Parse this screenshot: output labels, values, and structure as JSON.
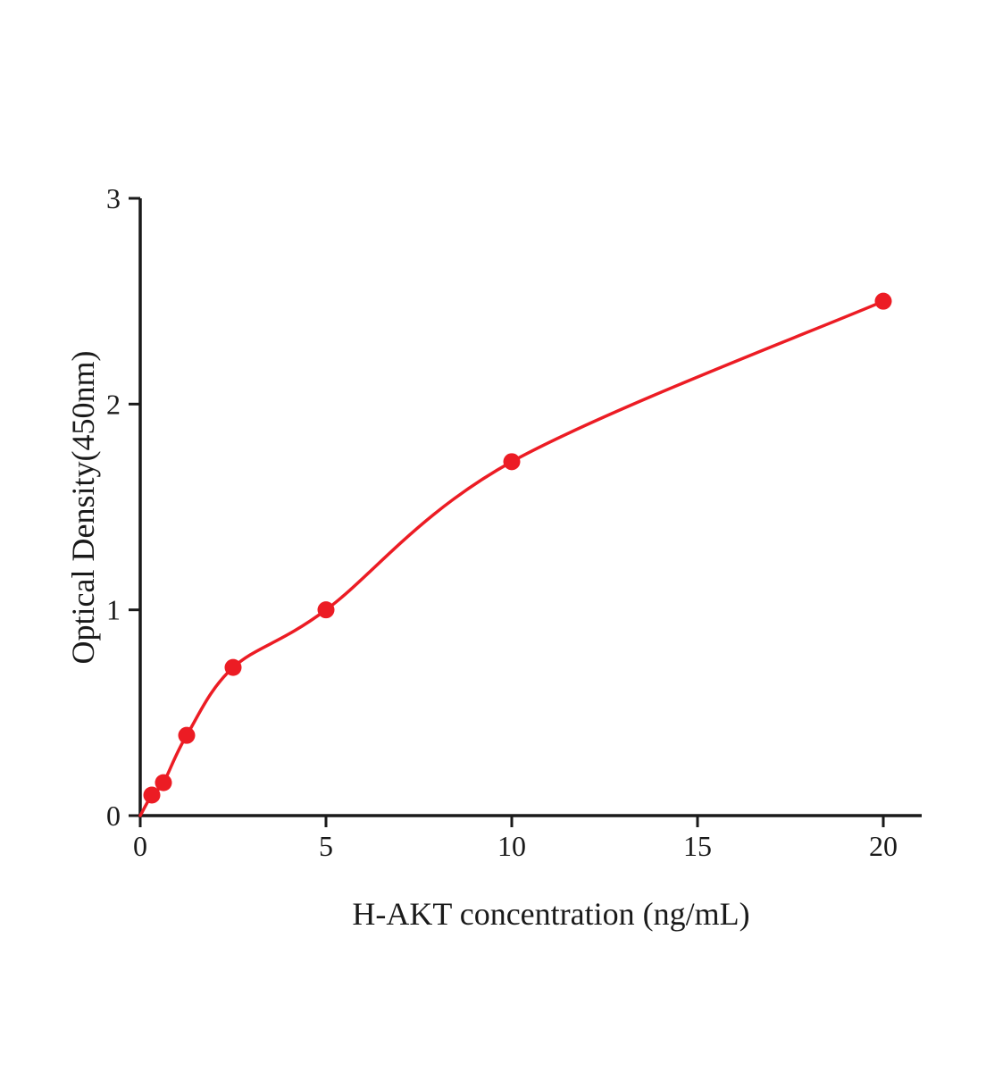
{
  "chart_data": {
    "type": "scatter",
    "title": "",
    "xlabel": "H-AKT concentration (ng/mL)",
    "ylabel": "Optical Density(450nm)",
    "x": [
      0.3125,
      0.625,
      1.25,
      2.5,
      5,
      10,
      20
    ],
    "y": [
      0.1,
      0.16,
      0.39,
      0.72,
      1.0,
      1.72,
      2.5
    ],
    "curve_start": {
      "x": 0,
      "y": 0
    },
    "xlim": [
      0,
      21
    ],
    "ylim": [
      0,
      3
    ],
    "xticks": [
      0,
      5,
      10,
      15,
      20
    ],
    "yticks": [
      0,
      1,
      2,
      3
    ],
    "grid": false,
    "legend": null,
    "series_color": "#ec1c24",
    "axis_color": "#1a1a1a",
    "marker_radius": 9.5,
    "line_width": 3.5
  }
}
